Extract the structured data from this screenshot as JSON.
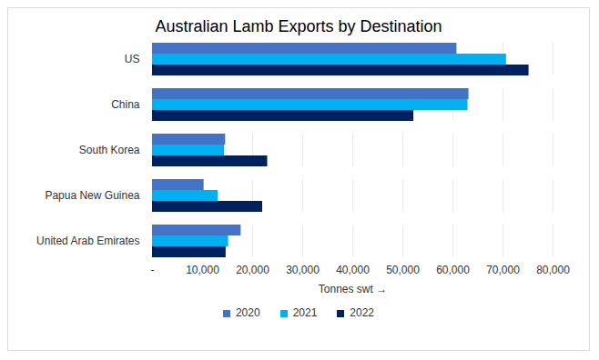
{
  "chart_data": {
    "type": "bar",
    "title": "Australian Lamb Exports by Destination",
    "orientation": "horizontal",
    "categories": [
      "US",
      "China",
      "South Korea",
      "Papua New Guinea",
      "United Arab Emirates"
    ],
    "series": [
      {
        "name": "2020",
        "color": "#4472c4",
        "values": [
          60800,
          63200,
          14600,
          10300,
          17700
        ]
      },
      {
        "name": "2021",
        "color": "#00b0f0",
        "values": [
          70700,
          63000,
          14400,
          13100,
          15200
        ]
      },
      {
        "name": "2022",
        "color": "#002060",
        "values": [
          75200,
          52200,
          23000,
          22000,
          14700
        ]
      }
    ],
    "xlabel": "Tonnes swt",
    "xlim": [
      0,
      80000
    ],
    "xticks": [
      {
        "value": 0,
        "label": "-"
      },
      {
        "value": 10000,
        "label": "10,000"
      },
      {
        "value": 20000,
        "label": "20,000"
      },
      {
        "value": 30000,
        "label": "30,000"
      },
      {
        "value": 40000,
        "label": "40,000"
      },
      {
        "value": 50000,
        "label": "50,000"
      },
      {
        "value": 60000,
        "label": "60,000"
      },
      {
        "value": 70000,
        "label": "70,000"
      },
      {
        "value": 80000,
        "label": "80,000"
      }
    ],
    "grid": true,
    "legend": "bottom"
  }
}
